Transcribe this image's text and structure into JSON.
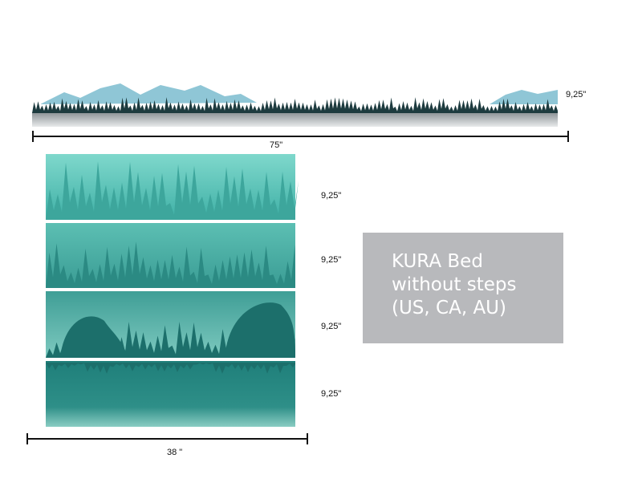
{
  "top_strip": {
    "height_label": "9,25\"",
    "width_label": "75\""
  },
  "panels": [
    {
      "height_label": "9,25\""
    },
    {
      "height_label": "9,25\""
    },
    {
      "height_label": "9,25\""
    },
    {
      "height_label": "9,25\""
    }
  ],
  "panel_width_label": "38 \"",
  "info_box": {
    "lines": [
      "KURA  Bed",
      "without steps",
      "(US, CA, AU)"
    ]
  }
}
